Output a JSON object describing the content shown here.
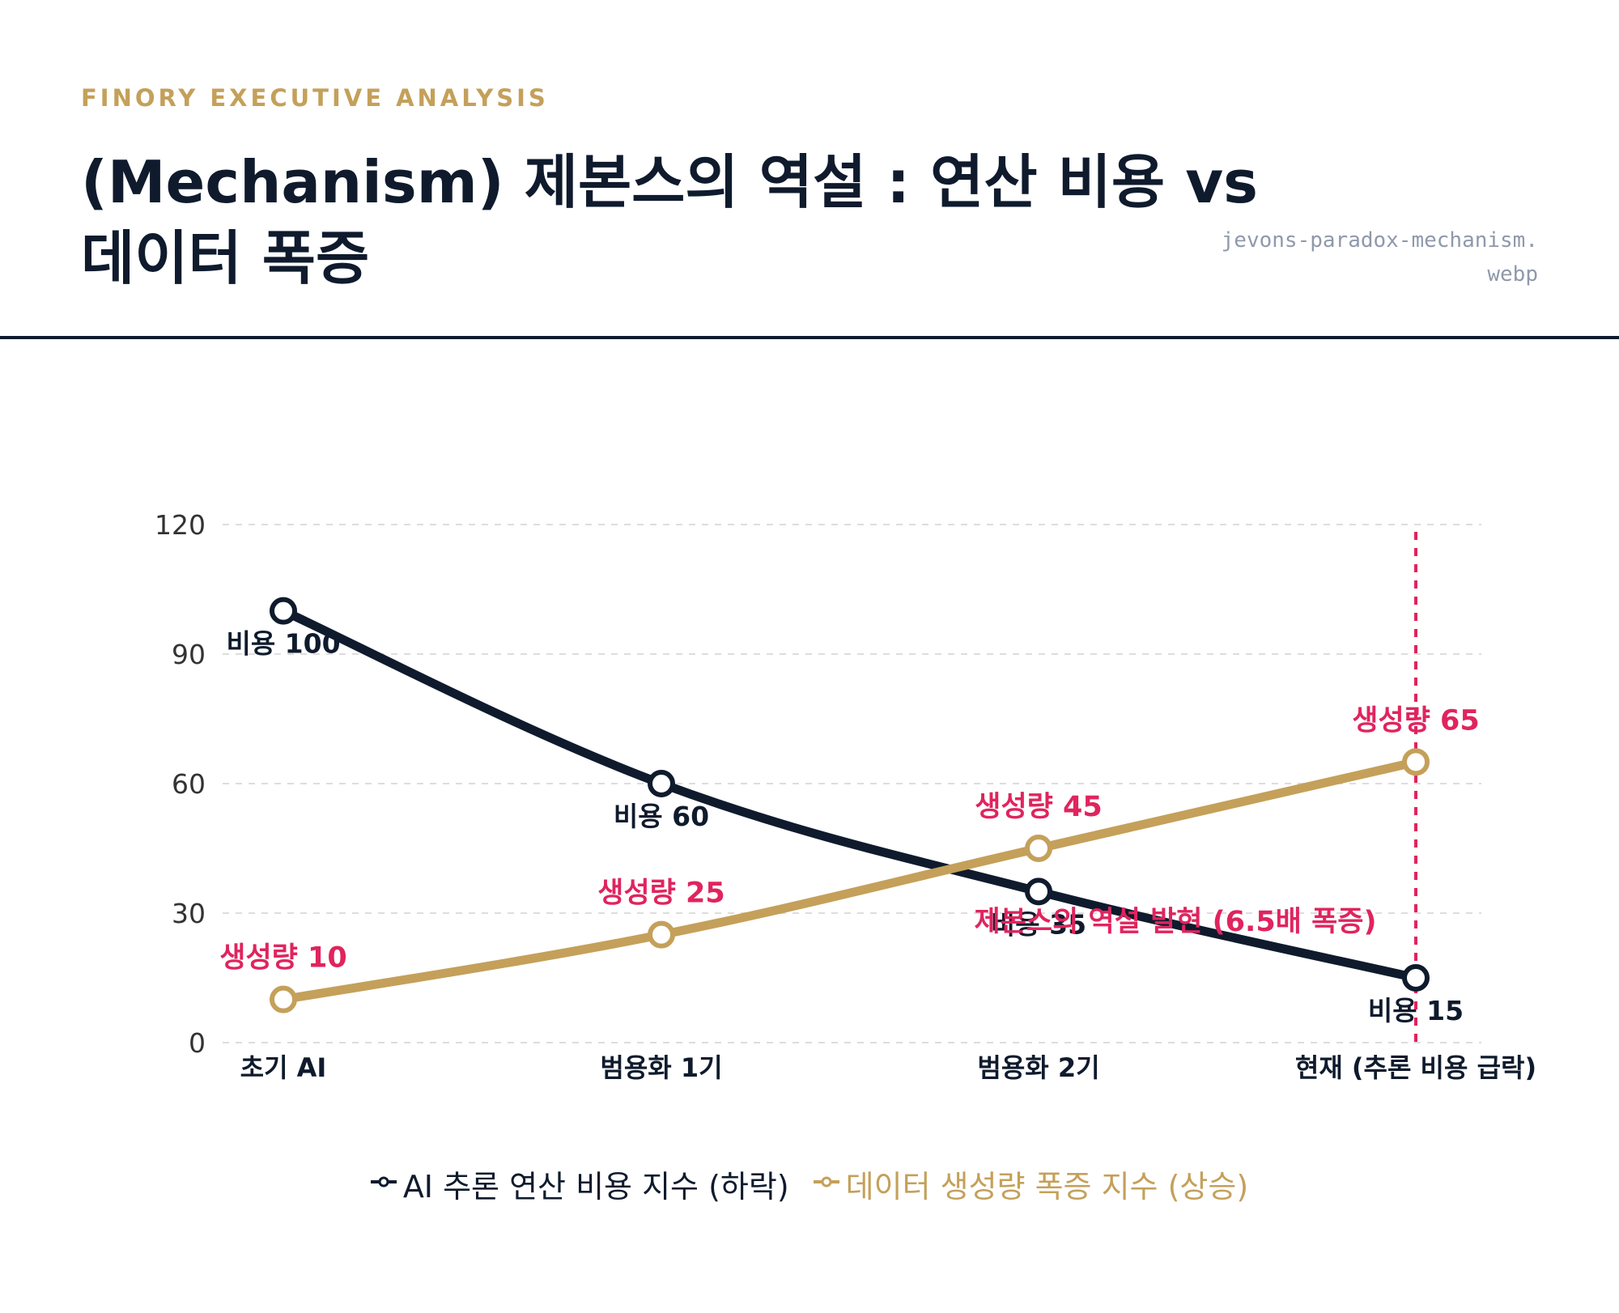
{
  "header": {
    "eyebrow": "FINORY EXECUTIVE ANALYSIS",
    "title": "(Mechanism) 제본스의 역설 : 연산 비용 vs 데이터 폭증",
    "filename": "jevons-paradox-mechanism.webp"
  },
  "colors": {
    "navy": "#0f1b2d",
    "gold": "#c4a05a",
    "red": "#e0245e",
    "grid": "#dddddd"
  },
  "chart_data": {
    "type": "line",
    "categories": [
      "초기 AI",
      "범용화 1기",
      "범용화 2기",
      "현재 (추론 비용 급락)"
    ],
    "ylim": [
      0,
      120
    ],
    "yticks": [
      0,
      30,
      60,
      90,
      120
    ],
    "grid": true,
    "legend_position": "bottom",
    "series": [
      {
        "name": "AI 추론 연산 비용 지수 (하락)",
        "values": [
          100,
          60,
          35,
          15
        ],
        "color": "#0f1b2d",
        "data_labels": [
          "비용 100",
          "비용 60",
          "비용 35",
          "비용 15"
        ]
      },
      {
        "name": "데이터 생성량 폭증 지수 (상승)",
        "values": [
          10,
          25,
          45,
          65
        ],
        "color": "#c4a05a",
        "data_labels": [
          "생성량 10",
          "생성량 25",
          "생성량 45",
          "생성량 65"
        ]
      }
    ],
    "annotation": {
      "text": "제본스의 역설 발현 (6.5배 폭증)",
      "category_index": 3
    }
  }
}
